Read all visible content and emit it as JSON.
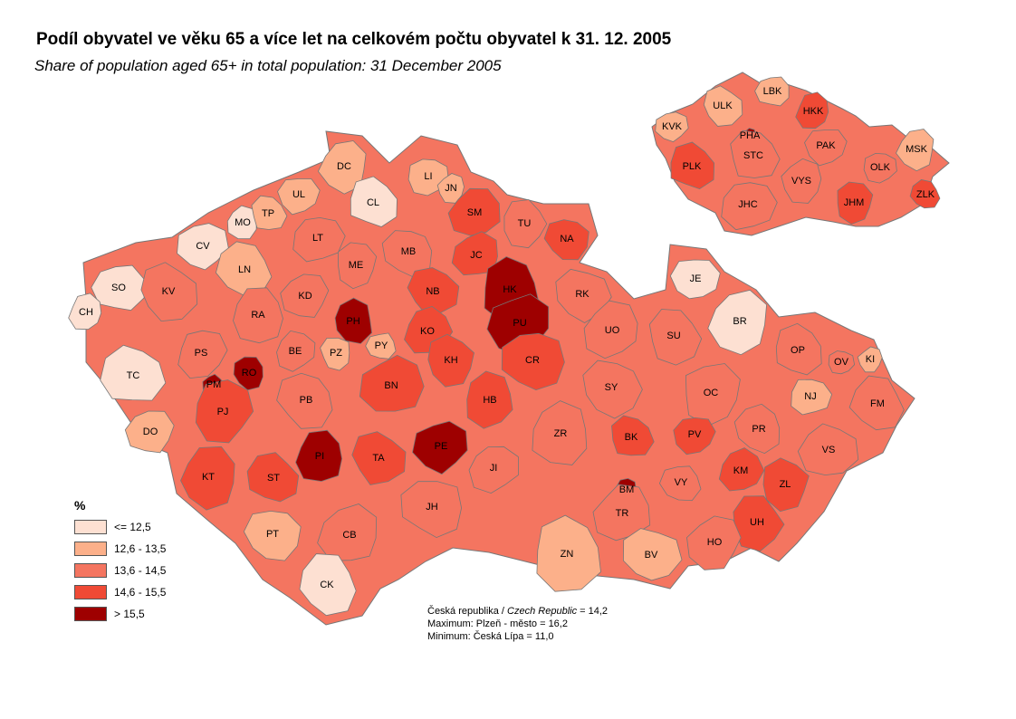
{
  "title": "Podíl obyvatel  ve věku 65 a více let na celkovém počtu obyvatel k 31. 12. 2005",
  "subtitle": "Share of population aged 65+ in total population: 31 December 2005",
  "legend": {
    "title": "%",
    "classes": [
      {
        "label": "<=  12,5",
        "color": "#fde0d2"
      },
      {
        "label": "12,6 - 13,5",
        "color": "#fcb08a"
      },
      {
        "label": "13,6 - 14,5",
        "color": "#f47560"
      },
      {
        "label": "14,6 - 15,5",
        "color": "#f04a35"
      },
      {
        "label": "> 15,5",
        "color": "#9e0000"
      }
    ]
  },
  "notes": {
    "republic_cz": "Česká republika / ",
    "republic_en": "Czech Republic",
    "republic_value": " = 14,2",
    "maximum": "Maximum:  Plzeň - město = 16,2",
    "minimum": "Minimum: Česká Lípa = 11,0"
  },
  "districts": [
    {
      "code": "SO",
      "class": 0
    },
    {
      "code": "CH",
      "class": 0
    },
    {
      "code": "KV",
      "class": 2
    },
    {
      "code": "CV",
      "class": 0
    },
    {
      "code": "MO",
      "class": 0
    },
    {
      "code": "TP",
      "class": 1
    },
    {
      "code": "UL",
      "class": 1
    },
    {
      "code": "DC",
      "class": 1
    },
    {
      "code": "CL",
      "class": 0
    },
    {
      "code": "LI",
      "class": 1
    },
    {
      "code": "JN",
      "class": 1
    },
    {
      "code": "LN",
      "class": 1
    },
    {
      "code": "LT",
      "class": 2
    },
    {
      "code": "ME",
      "class": 2
    },
    {
      "code": "MB",
      "class": 2
    },
    {
      "code": "SM",
      "class": 3
    },
    {
      "code": "TU",
      "class": 2
    },
    {
      "code": "NA",
      "class": 3
    },
    {
      "code": "JC",
      "class": 3
    },
    {
      "code": "HK",
      "class": 4
    },
    {
      "code": "RK",
      "class": 2
    },
    {
      "code": "KD",
      "class": 2
    },
    {
      "code": "RA",
      "class": 2
    },
    {
      "code": "NB",
      "class": 3
    },
    {
      "code": "PU",
      "class": 4
    },
    {
      "code": "PH",
      "class": 4
    },
    {
      "code": "TC",
      "class": 0
    },
    {
      "code": "PS",
      "class": 2
    },
    {
      "code": "RO",
      "class": 4
    },
    {
      "code": "PM",
      "class": 4
    },
    {
      "code": "BE",
      "class": 2
    },
    {
      "code": "PZ",
      "class": 1
    },
    {
      "code": "PY",
      "class": 1
    },
    {
      "code": "KO",
      "class": 3
    },
    {
      "code": "KH",
      "class": 3
    },
    {
      "code": "CR",
      "class": 3
    },
    {
      "code": "UO",
      "class": 2
    },
    {
      "code": "SU",
      "class": 2
    },
    {
      "code": "JE",
      "class": 0
    },
    {
      "code": "BR",
      "class": 0
    },
    {
      "code": "OP",
      "class": 2
    },
    {
      "code": "OV",
      "class": 2
    },
    {
      "code": "KI",
      "class": 1
    },
    {
      "code": "FM",
      "class": 2
    },
    {
      "code": "NJ",
      "class": 1
    },
    {
      "code": "OC",
      "class": 2
    },
    {
      "code": "PR",
      "class": 2
    },
    {
      "code": "VS",
      "class": 2
    },
    {
      "code": "PJ",
      "class": 3
    },
    {
      "code": "PB",
      "class": 2
    },
    {
      "code": "BN",
      "class": 3
    },
    {
      "code": "HB",
      "class": 3
    },
    {
      "code": "SY",
      "class": 2
    },
    {
      "code": "DO",
      "class": 1
    },
    {
      "code": "PI",
      "class": 4
    },
    {
      "code": "TA",
      "class": 3
    },
    {
      "code": "PE",
      "class": 4
    },
    {
      "code": "ZR",
      "class": 2
    },
    {
      "code": "BK",
      "class": 3
    },
    {
      "code": "PV",
      "class": 3
    },
    {
      "code": "KT",
      "class": 3
    },
    {
      "code": "ST",
      "class": 3
    },
    {
      "code": "JI",
      "class": 2
    },
    {
      "code": "BM",
      "class": 4
    },
    {
      "code": "VY",
      "class": 2
    },
    {
      "code": "KM",
      "class": 3
    },
    {
      "code": "ZL",
      "class": 3
    },
    {
      "code": "JH",
      "class": 2
    },
    {
      "code": "TR",
      "class": 2
    },
    {
      "code": "UH",
      "class": 3
    },
    {
      "code": "PT",
      "class": 1
    },
    {
      "code": "CB",
      "class": 2
    },
    {
      "code": "ZN",
      "class": 1
    },
    {
      "code": "BV",
      "class": 1
    },
    {
      "code": "HO",
      "class": 2
    },
    {
      "code": "CK",
      "class": 0
    }
  ],
  "regions": [
    {
      "code": "LBK",
      "class": 1
    },
    {
      "code": "HKK",
      "class": 3
    },
    {
      "code": "ULK",
      "class": 1
    },
    {
      "code": "KVK",
      "class": 1
    },
    {
      "code": "PHA",
      "class": 4
    },
    {
      "code": "STC",
      "class": 2
    },
    {
      "code": "PAK",
      "class": 2
    },
    {
      "code": "MSK",
      "class": 1
    },
    {
      "code": "PLK",
      "class": 3
    },
    {
      "code": "OLK",
      "class": 2
    },
    {
      "code": "VYS",
      "class": 2
    },
    {
      "code": "ZLK",
      "class": 3
    },
    {
      "code": "JHC",
      "class": 2
    },
    {
      "code": "JHM",
      "class": 3
    }
  ]
}
